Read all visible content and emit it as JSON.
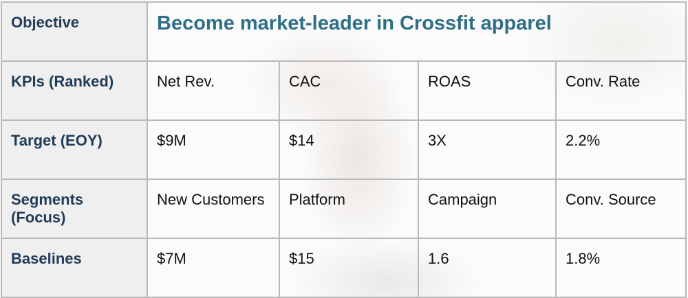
{
  "objective": {
    "label": "Objective",
    "value": "Become market-leader in Crossfit apparel"
  },
  "rows": [
    {
      "label": "KPIs (Ranked)",
      "cells": [
        "Net Rev.",
        "CAC",
        "ROAS",
        "Conv. Rate"
      ]
    },
    {
      "label": "Target (EOY)",
      "cells": [
        "$9M",
        "$14",
        "3X",
        "2.2%"
      ]
    },
    {
      "label": "Segments (Focus)",
      "cells": [
        "New Customers",
        "Platform",
        "Campaign",
        "Conv. Source"
      ]
    },
    {
      "label": "Baselines",
      "cells": [
        "$7M",
        "$15",
        "1.6",
        "1.8%"
      ]
    }
  ]
}
